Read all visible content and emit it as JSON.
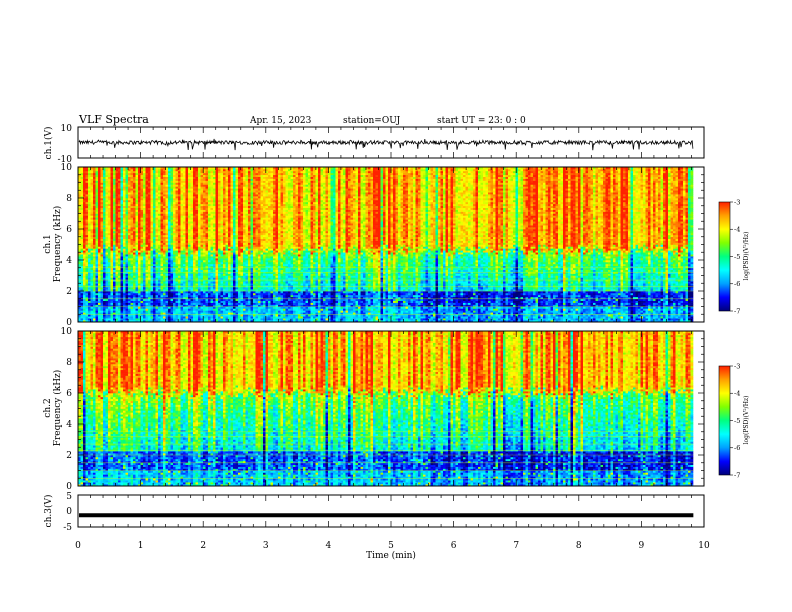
{
  "header": {
    "title": "VLF Spectra",
    "date": "Apr. 15, 2023",
    "station": "station=OUJ",
    "start_ut": "start  UT =  23: 0  : 0"
  },
  "chart_data": [
    {
      "type": "line",
      "panel": "ch.1 waveform",
      "ylabel": "ch.1(V)",
      "ylim": [
        -10,
        10
      ],
      "ytick_labels": [
        "10",
        "-10"
      ],
      "xlim": [
        0,
        10
      ],
      "x_unit": "min",
      "baseline": 0,
      "typical_amplitude": 1.5,
      "spike_amplitude": 4,
      "color": "#000000"
    },
    {
      "type": "heatmap",
      "panel": "ch.1 spectrogram",
      "ylabel": "ch.1\nFrequency (kHz)",
      "ylabel_lines": [
        "ch.1",
        "Frequency (kHz)"
      ],
      "ylim": [
        0,
        10
      ],
      "yticks": [
        0,
        2,
        4,
        6,
        8,
        10
      ],
      "xlim": [
        0,
        10
      ],
      "data_xmax": 9.83,
      "regime_change_min": 5.6,
      "band_boundary_khz": 4.6,
      "low_band_top_khz": 1.9,
      "colorbar": {
        "label": "log(PSD)(V²/Hz)",
        "range": [
          -7,
          -3
        ],
        "ticks": [
          "-3",
          "-4",
          "-5",
          "-6",
          "-7"
        ],
        "colors": [
          "#00007a",
          "#0000ff",
          "#00a0ff",
          "#00ffff",
          "#00ff80",
          "#80ff00",
          "#ffff00",
          "#ffa000",
          "#ff2000"
        ]
      }
    },
    {
      "type": "heatmap",
      "panel": "ch.2 spectrogram",
      "ylabel": "ch.2\nFrequency (kHz)",
      "ylabel_lines": [
        "ch.2",
        "Frequency (kHz)"
      ],
      "ylim": [
        0,
        10
      ],
      "yticks": [
        0,
        2,
        4,
        6,
        8,
        10
      ],
      "xlim": [
        0,
        10
      ],
      "data_xmax": 9.83,
      "regime_change_min": 5.6,
      "band_boundary_khz": 6.0,
      "low_band_top_khz": 2.2,
      "colorbar": {
        "label": "log(PSD)(V²/Hz)",
        "range": [
          -7,
          -3
        ],
        "ticks": [
          "-3",
          "-4",
          "-5",
          "-6",
          "-7"
        ],
        "colors": [
          "#00007a",
          "#0000ff",
          "#00a0ff",
          "#00ffff",
          "#00ff80",
          "#80ff00",
          "#ffff00",
          "#ffa000",
          "#ff2000"
        ]
      }
    },
    {
      "type": "line",
      "panel": "ch.3 waveform",
      "ylabel": "ch.3(V)",
      "ylim": [
        -5,
        5
      ],
      "ytick_labels": [
        "5",
        "0",
        "-5"
      ],
      "xlim": [
        0,
        10
      ],
      "level": -1.3,
      "color": "#000000"
    }
  ],
  "x_axis": {
    "label": "Time (min)",
    "ticks": [
      "0",
      "1",
      "2",
      "3",
      "4",
      "5",
      "6",
      "7",
      "8",
      "9",
      "10"
    ]
  }
}
